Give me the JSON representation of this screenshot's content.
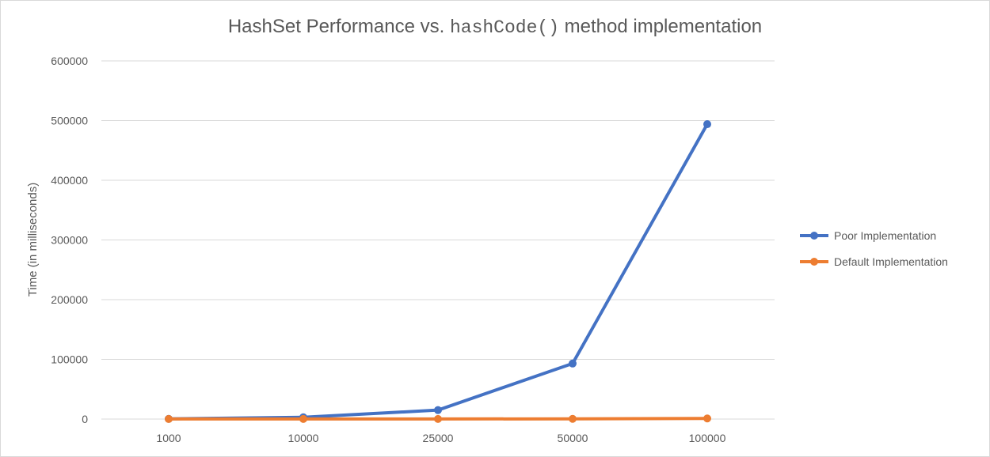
{
  "chart_data": {
    "type": "line",
    "title_prefix": "HashSet Performance vs. ",
    "title_code": "hashCode()",
    "title_suffix": " method implementation",
    "xlabel": "",
    "ylabel": "Time (in milliseconds)",
    "categories": [
      "1000",
      "10000",
      "25000",
      "50000",
      "100000"
    ],
    "ylim": [
      0,
      600000
    ],
    "yticks": [
      0,
      100000,
      200000,
      300000,
      400000,
      500000,
      600000
    ],
    "grid": true,
    "legend_position": "right",
    "series": [
      {
        "name": "Poor Implementation",
        "color": "#4472c4",
        "values": [
          300,
          3000,
          15000,
          93000,
          494000
        ]
      },
      {
        "name": "Default Implementation",
        "color": "#ed7d31",
        "values": [
          100,
          150,
          200,
          300,
          1000
        ]
      }
    ]
  }
}
